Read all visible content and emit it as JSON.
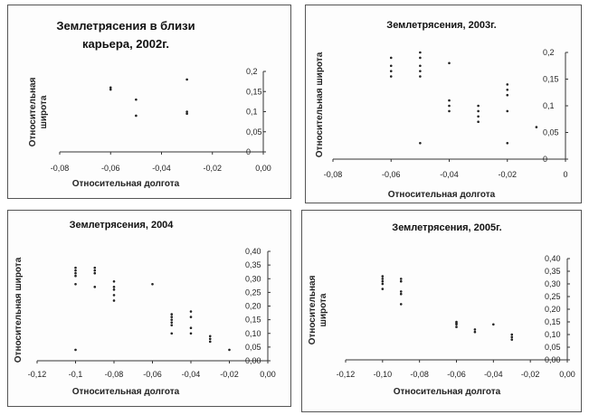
{
  "chart_data": [
    {
      "type": "scatter",
      "title": [
        "Землетрясения в близи",
        "карьера, 2002г."
      ],
      "xlabel": "Относительная  долгота",
      "ylabel": [
        "Относительная",
        "широта"
      ],
      "xlim": [
        -0.08,
        0.0
      ],
      "ylim": [
        0.0,
        0.2
      ],
      "xticks": [
        "-0,08",
        "-0,06",
        "-0,04",
        "-0,02",
        "0,00"
      ],
      "yticks": [
        "0",
        "0,05",
        "0,1",
        "0,15",
        "0,2"
      ],
      "points": [
        [
          -0.06,
          0.16
        ],
        [
          -0.06,
          0.155
        ],
        [
          -0.05,
          0.13
        ],
        [
          -0.05,
          0.09
        ],
        [
          -0.03,
          0.18
        ],
        [
          -0.03,
          0.1
        ],
        [
          -0.03,
          0.095
        ]
      ]
    },
    {
      "type": "scatter",
      "title": [
        "Землетрясения, 2003г."
      ],
      "xlabel": "Относительная долгота",
      "ylabel": [
        "Относительная широта"
      ],
      "xlim": [
        -0.08,
        0.0
      ],
      "ylim": [
        0.0,
        0.2
      ],
      "xticks": [
        "-0,08",
        "-0,06",
        "-0,04",
        "-0,02",
        "0"
      ],
      "yticks": [
        "0",
        "0,05",
        "0,1",
        "0,15",
        "0,2"
      ],
      "points": [
        [
          -0.06,
          0.19
        ],
        [
          -0.06,
          0.175
        ],
        [
          -0.06,
          0.165
        ],
        [
          -0.06,
          0.155
        ],
        [
          -0.05,
          0.2
        ],
        [
          -0.05,
          0.19
        ],
        [
          -0.05,
          0.175
        ],
        [
          -0.05,
          0.165
        ],
        [
          -0.05,
          0.155
        ],
        [
          -0.05,
          0.03
        ],
        [
          -0.04,
          0.18
        ],
        [
          -0.04,
          0.11
        ],
        [
          -0.04,
          0.1
        ],
        [
          -0.04,
          0.09
        ],
        [
          -0.03,
          0.1
        ],
        [
          -0.03,
          0.09
        ],
        [
          -0.03,
          0.08
        ],
        [
          -0.03,
          0.07
        ],
        [
          -0.02,
          0.14
        ],
        [
          -0.02,
          0.13
        ],
        [
          -0.02,
          0.12
        ],
        [
          -0.02,
          0.09
        ],
        [
          -0.02,
          0.03
        ],
        [
          -0.01,
          0.06
        ]
      ]
    },
    {
      "type": "scatter",
      "title": [
        "Землетрясения, 2004"
      ],
      "xlabel": "Относительная долгота",
      "ylabel": [
        "Относительная широта"
      ],
      "xlim": [
        -0.12,
        0.0
      ],
      "ylim": [
        0.0,
        0.4
      ],
      "xticks": [
        "-0,12",
        "-0,1",
        "-0,08",
        "-0,06",
        "-0,04",
        "-0,02",
        "0,00"
      ],
      "yticks": [
        "0,00",
        "0,05",
        "0,10",
        "0,15",
        "0,20",
        "0,25",
        "0,30",
        "0,35",
        "0,40"
      ],
      "points": [
        [
          -0.1,
          0.34
        ],
        [
          -0.1,
          0.33
        ],
        [
          -0.1,
          0.32
        ],
        [
          -0.1,
          0.31
        ],
        [
          -0.1,
          0.28
        ],
        [
          -0.1,
          0.04
        ],
        [
          -0.09,
          0.34
        ],
        [
          -0.09,
          0.33
        ],
        [
          -0.09,
          0.32
        ],
        [
          -0.09,
          0.27
        ],
        [
          -0.08,
          0.29
        ],
        [
          -0.08,
          0.27
        ],
        [
          -0.08,
          0.26
        ],
        [
          -0.08,
          0.24
        ],
        [
          -0.08,
          0.22
        ],
        [
          -0.06,
          0.28
        ],
        [
          -0.05,
          0.17
        ],
        [
          -0.05,
          0.16
        ],
        [
          -0.05,
          0.15
        ],
        [
          -0.05,
          0.14
        ],
        [
          -0.05,
          0.13
        ],
        [
          -0.05,
          0.1
        ],
        [
          -0.04,
          0.18
        ],
        [
          -0.04,
          0.16
        ],
        [
          -0.04,
          0.12
        ],
        [
          -0.04,
          0.1
        ],
        [
          -0.03,
          0.09
        ],
        [
          -0.03,
          0.08
        ],
        [
          -0.03,
          0.07
        ],
        [
          -0.02,
          0.04
        ]
      ]
    },
    {
      "type": "scatter",
      "title": [
        "Землетрясения, 2005г."
      ],
      "xlabel": "Относительная долгота",
      "ylabel": [
        "Относительная",
        "широта"
      ],
      "xlim": [
        -0.12,
        0.0
      ],
      "ylim": [
        0.0,
        0.4
      ],
      "xticks": [
        "-0,12",
        "-0,10",
        "-0,08",
        "-0,06",
        "-0,04",
        "-0,02",
        "0,00"
      ],
      "yticks": [
        "0,00",
        "0,05",
        "0,10",
        "0,15",
        "0,20",
        "0,25",
        "0,30",
        "0,35",
        "0,40"
      ],
      "points": [
        [
          -0.1,
          0.33
        ],
        [
          -0.1,
          0.32
        ],
        [
          -0.1,
          0.31
        ],
        [
          -0.1,
          0.3
        ],
        [
          -0.1,
          0.28
        ],
        [
          -0.09,
          0.32
        ],
        [
          -0.09,
          0.31
        ],
        [
          -0.09,
          0.27
        ],
        [
          -0.09,
          0.26
        ],
        [
          -0.09,
          0.22
        ],
        [
          -0.06,
          0.15
        ],
        [
          -0.06,
          0.145
        ],
        [
          -0.06,
          0.14
        ],
        [
          -0.06,
          0.13
        ],
        [
          -0.05,
          0.12
        ],
        [
          -0.05,
          0.11
        ],
        [
          -0.04,
          0.14
        ],
        [
          -0.03,
          0.1
        ],
        [
          -0.03,
          0.09
        ],
        [
          -0.03,
          0.08
        ]
      ]
    }
  ]
}
